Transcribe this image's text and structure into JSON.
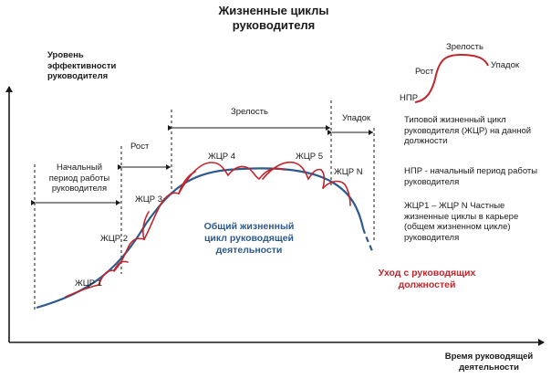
{
  "title_lines": [
    "Жизненные циклы",
    "руководителя"
  ],
  "y_axis_label": [
    "Уровень",
    "эффективности",
    "руководителя"
  ],
  "x_axis_label": [
    "Время руководящей",
    "деятельности"
  ],
  "stages": {
    "initial": [
      "Начальный",
      "период работы",
      "руководителя"
    ],
    "growth": "Рост",
    "maturity": "Зрелость",
    "decline": "Упадок"
  },
  "cycles": {
    "c1": "ЖЦР 1",
    "c2": "ЖЦР 2",
    "c3": "ЖЦР 3",
    "c4": "ЖЦР 4",
    "c5": "ЖЦР 5",
    "cn": "ЖЦР N"
  },
  "general_cycle": [
    "Общий жизненный",
    "цикл руководящей",
    "деятельности"
  ],
  "exit": [
    "Уход с руководящих",
    "должностей"
  ],
  "legend": {
    "npr": "НПР",
    "growth": "Рост",
    "maturity": "Зрелость",
    "decline": "Упадок"
  },
  "notes": [
    [
      "Типовой жизненный цикл",
      "руководителя (ЖЦР) на данной",
      "должности"
    ],
    [
      "НПР - начальный период работы",
      "руководителя"
    ],
    [
      "ЖЦР1 – ЖЦР N Частные",
      "жизненные циклы в карьере",
      "(общем жизненном цикле)",
      "руководителя"
    ]
  ],
  "colors": {
    "axis": "#1a1a1a",
    "general_curve": "#2e5a8c",
    "cycle_curve": "#c0262c",
    "text": "#1a1a1a"
  }
}
